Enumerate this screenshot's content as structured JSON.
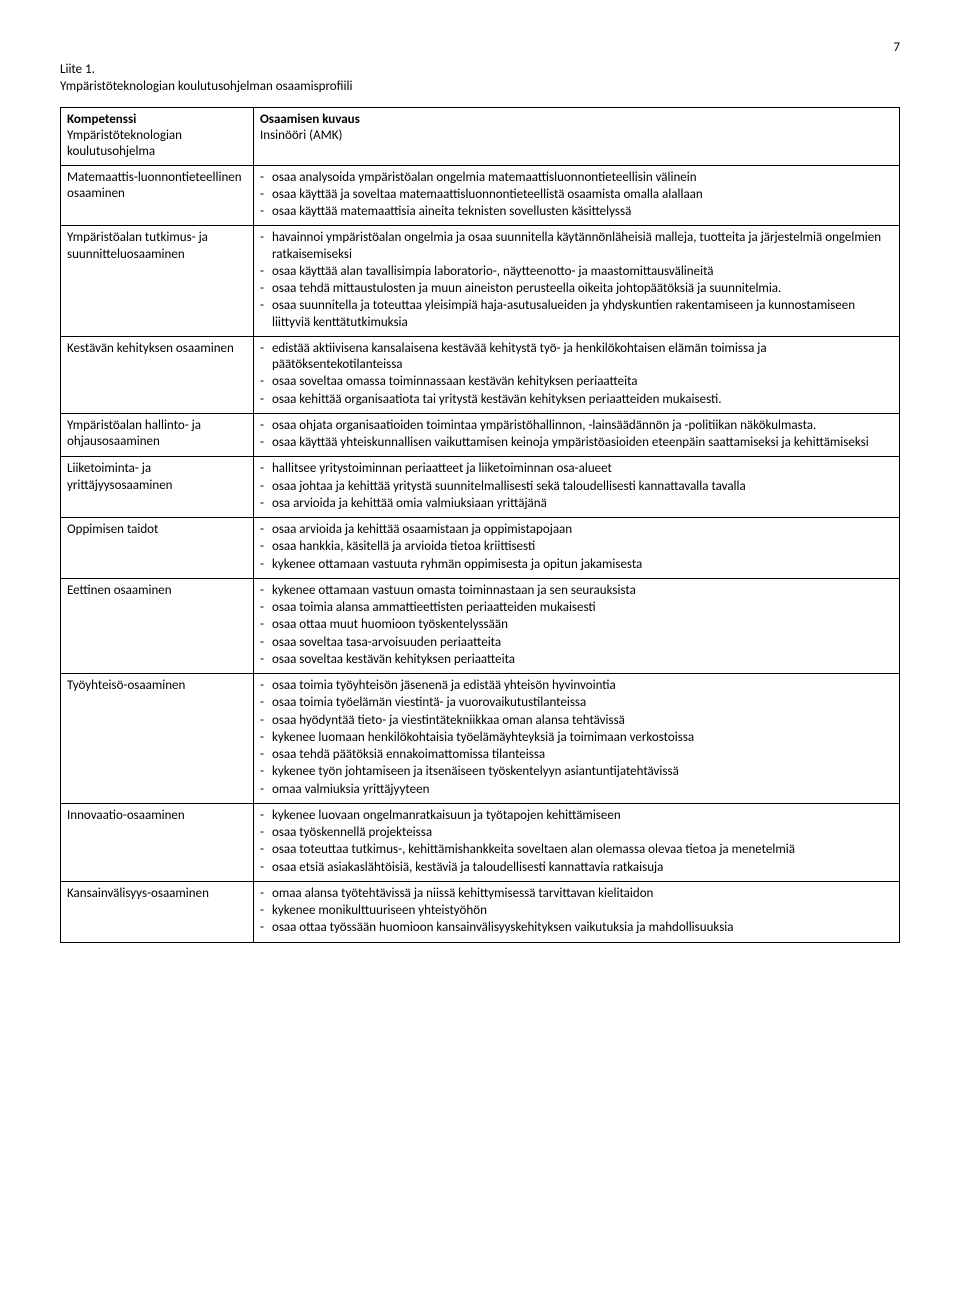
{
  "page_number": "7",
  "heading_line1": "Liite 1.",
  "heading_line2": "Ympäristöteknologian koulutusohjelman osaamisprofiili",
  "header_left_label": "Kompetenssi",
  "header_left_sub": "Ympäristöteknologian koulutusohjelma",
  "header_right_label": "Osaamisen kuvaus",
  "header_right_sub": "Insinööri (AMK)",
  "rows": [
    {
      "left": "Matemaattis-luonnontieteellinen osaaminen",
      "items": [
        "osaa analysoida ympäristöalan ongelmia matemaattisluonnontieteellisin välinein",
        "osaa käyttää ja soveltaa matemaattisluonnontieteellistä osaamista omalla alallaan",
        "osaa käyttää matemaattisia aineita teknisten sovellusten käsittelyssä"
      ]
    },
    {
      "left": "Ympäristöalan tutkimus- ja suunnitteluosaaminen",
      "items": [
        "havainnoi ympäristöalan ongelmia ja osaa suunnitella käytännönläheisiä malleja, tuotteita ja järjestelmiä ongelmien ratkaisemiseksi",
        "osaa käyttää alan tavallisimpia laboratorio-, näytteenotto- ja maastomittausvälineitä",
        "osaa tehdä mittaustulosten ja muun aineiston perusteella oikeita johtopäätöksiä ja suunnitelmia.",
        "osaa suunnitella ja toteuttaa yleisimpiä haja-asutusalueiden ja yhdyskuntien rakentamiseen ja kunnostamiseen liittyviä kenttätutkimuksia"
      ]
    },
    {
      "left": "Kestävän kehityksen osaaminen",
      "items": [
        "edistää aktiivisena kansalaisena kestävää kehitystä työ- ja henkilökohtaisen elämän toimissa ja päätöksentekotilanteissa",
        "osaa soveltaa omassa toiminnassaan kestävän kehityksen periaatteita",
        "osaa kehittää organisaatiota tai yritystä kestävän kehityksen periaatteiden mukaisesti."
      ]
    },
    {
      "left": "Ympäristöalan hallinto- ja ohjausosaaminen",
      "items": [
        "osaa ohjata organisaatioiden toimintaa ympäristöhallinnon, -lainsäädännön ja -politiikan näkökulmasta.",
        "osaa käyttää yhteiskunnallisen vaikuttamisen keinoja ympäristöasioiden eteenpäin saattamiseksi ja kehittämiseksi"
      ]
    },
    {
      "left": "Liiketoiminta- ja yrittäjyysosaaminen",
      "items": [
        "hallitsee yritystoiminnan periaatteet ja liiketoiminnan osa-alueet",
        "osaa johtaa ja kehittää yritystä suunnitelmallisesti sekä taloudellisesti kannattavalla tavalla",
        "osa arvioida ja kehittää omia valmiuksiaan yrittäjänä"
      ]
    },
    {
      "left": "Oppimisen taidot",
      "items": [
        "osaa arvioida ja kehittää osaamistaan ja oppimistapojaan",
        "osaa hankkia, käsitellä ja arvioida tietoa kriittisesti",
        "kykenee ottamaan vastuuta ryhmän oppimisesta ja opitun jakamisesta"
      ]
    },
    {
      "left": "Eettinen osaaminen",
      "items": [
        "kykenee ottamaan vastuun omasta toiminnastaan ja sen seurauksista",
        "osaa toimia alansa ammattieettisten periaatteiden mukaisesti",
        "osaa ottaa muut huomioon työskentelyssään",
        "osaa soveltaa tasa-arvoisuuden periaatteita",
        "osaa soveltaa kestävän kehityksen periaatteita"
      ]
    },
    {
      "left": "Työyhteisö-osaaminen",
      "items": [
        "osaa toimia työyhteisön jäsenenä ja edistää yhteisön hyvinvointia",
        "osaa toimia työelämän viestintä- ja vuorovaikutustilanteissa",
        "osaa hyödyntää tieto- ja viestintätekniikkaa oman alansa tehtävissä",
        "kykenee luomaan henkilökohtaisia työelämäyhteyksiä ja toimimaan verkostoissa",
        "osaa tehdä päätöksiä ennakoimattomissa tilanteissa",
        "kykenee työn johtamiseen ja itsenäiseen työskentelyyn asiantuntijatehtävissä",
        "omaa valmiuksia yrittäjyyteen"
      ]
    },
    {
      "left": "Innovaatio-osaaminen",
      "items": [
        "kykenee luovaan ongelmanratkaisuun ja työtapojen kehittämiseen",
        "osaa työskennellä projekteissa",
        "osaa toteuttaa tutkimus-, kehittämishankkeita soveltaen alan olemassa olevaa tietoa ja menetelmiä",
        "osaa etsiä asiakaslähtöisiä, kestäviä ja taloudellisesti kannattavia ratkaisuja"
      ]
    },
    {
      "left": "Kansainvälisyys-osaaminen",
      "items": [
        "omaa alansa työtehtävissä ja niissä kehittymisessä tarvittavan kielitaidon",
        "kykenee monikulttuuriseen yhteistyöhön",
        "osaa ottaa työssään huomioon kansainvälisyyskehityksen vaikutuksia ja mahdollisuuksia"
      ]
    }
  ]
}
